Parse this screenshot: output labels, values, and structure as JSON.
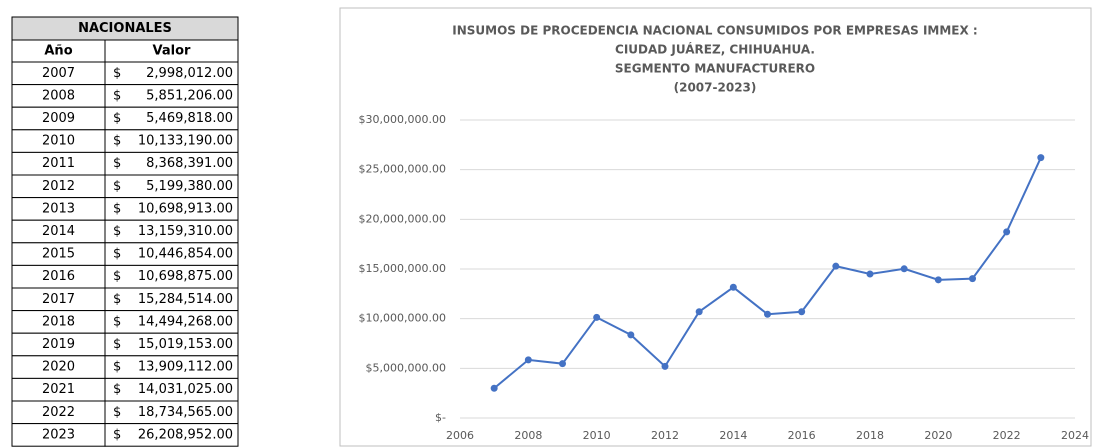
{
  "table": {
    "title": "NACIONALES",
    "columns": [
      "Año",
      "Valor"
    ],
    "rows": [
      [
        "2007",
        "$",
        "2,998,012.00"
      ],
      [
        "2008",
        "$",
        "5,851,206.00"
      ],
      [
        "2009",
        "$",
        "5,469,818.00"
      ],
      [
        "2010",
        "$",
        "10,133,190.00"
      ],
      [
        "2011",
        "$",
        "8,368,391.00"
      ],
      [
        "2012",
        "$",
        "5,199,380.00"
      ],
      [
        "2013",
        "$",
        "10,698,913.00"
      ],
      [
        "2014",
        "$",
        "13,159,310.00"
      ],
      [
        "2015",
        "$",
        "10,446,854.00"
      ],
      [
        "2016",
        "$",
        "10,698,875.00"
      ],
      [
        "2017",
        "$",
        "15,284,514.00"
      ],
      [
        "2018",
        "$",
        "14,494,268.00"
      ],
      [
        "2019",
        "$",
        "15,019,153.00"
      ],
      [
        "2020",
        "$",
        "13,909,112.00"
      ],
      [
        "2021",
        "$",
        "14,031,025.00"
      ],
      [
        "2022",
        "$",
        "18,734,565.00"
      ],
      [
        "2023",
        "$",
        "26,208,952.00"
      ]
    ]
  },
  "chart_data": {
    "type": "line",
    "title": [
      "INSUMOS DE PROCEDENCIA NACIONAL CONSUMIDOS POR EMPRESAS IMMEX :",
      "CIUDAD JUÁREZ, CHIHUAHUA.",
      "SEGMENTO MANUFACTURERO",
      "(2007-2023)"
    ],
    "x": [
      2007,
      2008,
      2009,
      2010,
      2011,
      2012,
      2013,
      2014,
      2015,
      2016,
      2017,
      2018,
      2019,
      2020,
      2021,
      2022,
      2023
    ],
    "series": [
      {
        "name": "Valor",
        "color": "#4472c4",
        "values": [
          2998012,
          5851206,
          5469818,
          10133190,
          8368391,
          5199380,
          10698913,
          13159310,
          10446854,
          10698875,
          15284514,
          14494268,
          15019153,
          13909112,
          14031025,
          18734565,
          26208952
        ]
      }
    ],
    "xlim": [
      2006,
      2024
    ],
    "xticks": [
      2006,
      2008,
      2010,
      2012,
      2014,
      2016,
      2018,
      2020,
      2022,
      2024
    ],
    "ylim": [
      0,
      30000000
    ],
    "yticks": [
      {
        "value": 0,
        "label": "$-"
      },
      {
        "value": 5000000,
        "label": "$5,000,000.00"
      },
      {
        "value": 10000000,
        "label": "$10,000,000.00"
      },
      {
        "value": 15000000,
        "label": "$15,000,000.00"
      },
      {
        "value": 20000000,
        "label": "$20,000,000.00"
      },
      {
        "value": 25000000,
        "label": "$25,000,000.00"
      },
      {
        "value": 30000000,
        "label": "$30,000,000.00"
      }
    ],
    "grid": true
  }
}
